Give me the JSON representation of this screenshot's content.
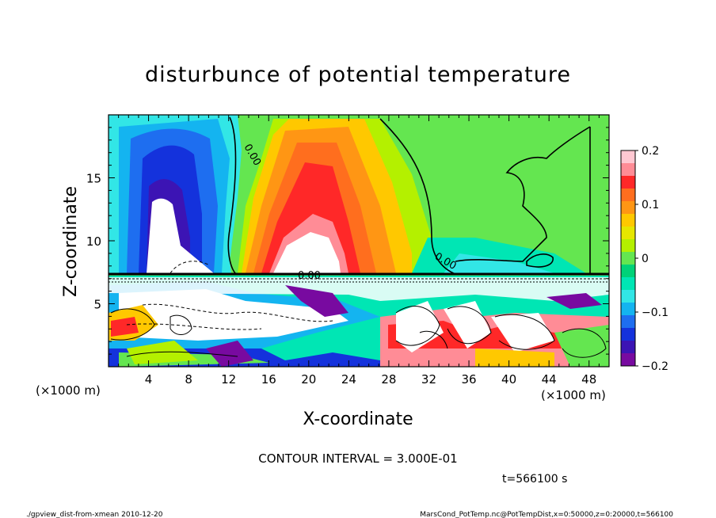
{
  "chart_data": {
    "type": "heatmap",
    "title": "disturbunce of potential temperature",
    "xlabel": "X-coordinate",
    "ylabel": "Z-coordinate",
    "x_unit": "(×1000 m)",
    "y_unit": "(×1000 m)",
    "x_ticks": [
      "4",
      "8",
      "12",
      "16",
      "20",
      "24",
      "28",
      "32",
      "36",
      "40",
      "44",
      "48"
    ],
    "y_ticks": [
      "5",
      "10",
      "15"
    ],
    "xlim": [
      0,
      50
    ],
    "ylim": [
      0,
      20
    ],
    "colorbar": {
      "ticks": [
        "0.2",
        "0.1",
        "0",
        "−0.1",
        "−0.2"
      ],
      "range": [
        -0.2,
        0.2
      ],
      "colors": [
        "#ffc8d2",
        "#ff8c96",
        "#ff2828",
        "#ff6e1e",
        "#ff9614",
        "#ffc800",
        "#e6e600",
        "#b4f000",
        "#64e650",
        "#00d278",
        "#00e6b4",
        "#32e6e6",
        "#14b4f0",
        "#1e6ef0",
        "#1432dc",
        "#3c14b4",
        "#780aa0"
      ]
    },
    "contour_labels": [
      "0.00",
      "0.00",
      "0.00"
    ],
    "contour_interval": "CONTOUR INTERVAL = 3.000E-01",
    "time": "t=566100 s"
  },
  "footer": {
    "left": "./gpview_dist-from-xmean  2010-12-20",
    "right": "MarsCond_PotTemp.nc@PotTempDist,x=0:50000,z=0:20000,t=566100"
  }
}
